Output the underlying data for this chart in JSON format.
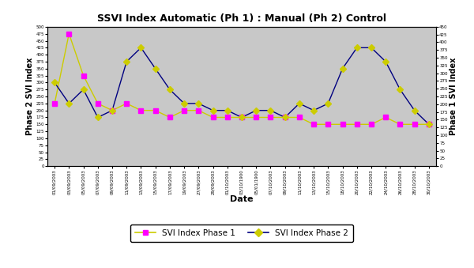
{
  "title": "SSVI Index Automatic (Ph 1) : Manual (Ph 2) Control",
  "xlabel": "Date",
  "ylabel_left": "Phase 2 SVI Index",
  "ylabel_right": "Phase 1 SVI Index",
  "background_color": "#c8c8c8",
  "x_labels": [
    "01/09/2003",
    "03/09/2003",
    "05/09/2003",
    "07/09/2003",
    "09/09/2003",
    "11/09/2003",
    "13/09/2003",
    "15/09/2003",
    "17/09/2003",
    "19/09/2003",
    "27/09/2003",
    "29/09/2003",
    "01/10/2003",
    "03/10/1900",
    "05/01/1900",
    "07/10/2003",
    "09/10/2003",
    "11/10/2003",
    "13/10/2003",
    "15/10/2003",
    "18/10/2003",
    "20/10/2003",
    "22/10/2003",
    "24/10/2003",
    "26/10/2003",
    "28/10/2003",
    "30/10/2003"
  ],
  "phase1_values": [
    225,
    475,
    325,
    225,
    200,
    225,
    200,
    200,
    175,
    200,
    200,
    175,
    175,
    175,
    175,
    175,
    175,
    175,
    150,
    150,
    150,
    150,
    150,
    175,
    150,
    150,
    150
  ],
  "phase2_values": [
    300,
    225,
    275,
    175,
    200,
    375,
    425,
    350,
    275,
    225,
    225,
    200,
    200,
    175,
    200,
    200,
    175,
    225,
    200,
    225,
    350,
    425,
    425,
    375,
    275,
    200,
    150
  ],
  "phase1_color": "#ff00ff",
  "line1_color": "#cccc00",
  "line2_color": "#000080",
  "marker2_color": "#cccc00",
  "ylim_left": [
    0,
    500
  ],
  "ylim_right": [
    0,
    450
  ],
  "yticks_left": [
    0,
    25,
    50,
    75,
    100,
    125,
    150,
    175,
    200,
    225,
    250,
    275,
    300,
    325,
    350,
    375,
    400,
    425,
    450,
    475,
    500
  ],
  "yticks_right": [
    0,
    25,
    50,
    75,
    100,
    125,
    150,
    175,
    200,
    225,
    250,
    275,
    300,
    325,
    350,
    375,
    400,
    425,
    450
  ],
  "figsize": [
    6.0,
    3.39
  ],
  "dpi": 100
}
